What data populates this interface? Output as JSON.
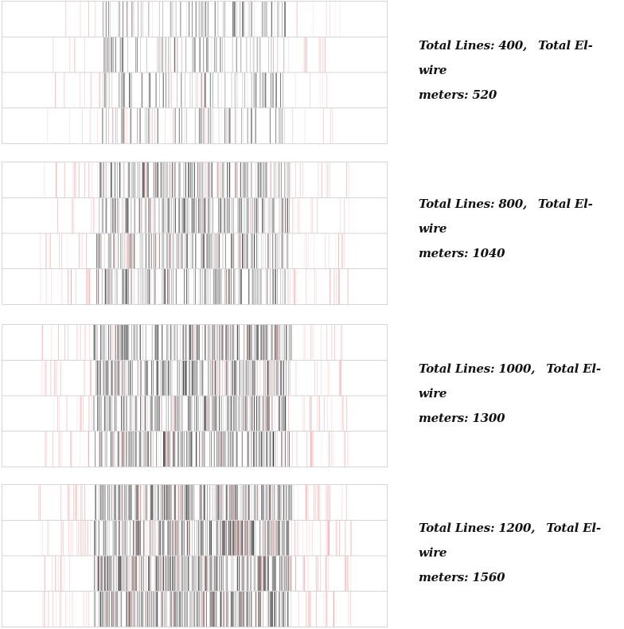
{
  "colors": {
    "dense_line": "#222222",
    "sparse_line": "#f08a8a",
    "row_divider": "#d6d6d6"
  },
  "studies": [
    {
      "lines_label": "Total Lines: 400,",
      "meters_label_a": "Total El-wire",
      "meters_label_b": "meters: 520",
      "total_lines": 400,
      "total_meters": 520
    },
    {
      "lines_label": "Total Lines: 800,",
      "meters_label_a": "Total El-wire",
      "meters_label_b": "meters: 1040",
      "total_lines": 800,
      "total_meters": 1040
    },
    {
      "lines_label": "Total Lines: 1000,",
      "meters_label_a": "Total El-wire",
      "meters_label_b": "meters: 1300",
      "total_lines": 1000,
      "total_meters": 1300
    },
    {
      "lines_label": "Total Lines: 1200,",
      "meters_label_a": "Total El-wire",
      "meters_label_b": "meters: 1560",
      "total_lines": 1200,
      "total_meters": 1560
    }
  ]
}
